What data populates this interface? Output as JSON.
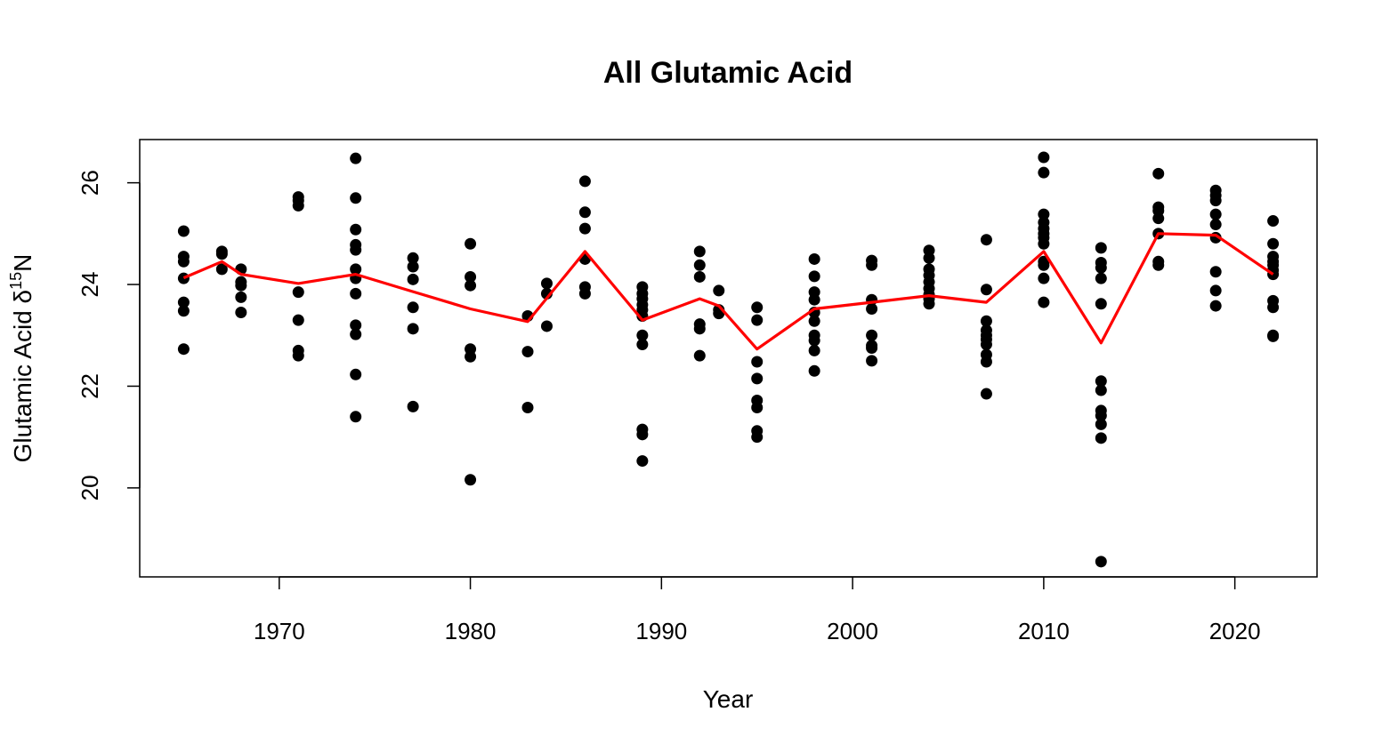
{
  "chart_data": {
    "type": "scatter",
    "title": "All Glutamic Acid",
    "xlabel": "Year",
    "ylabel_main": "Glutamic Acid δ",
    "ylabel_sup": "15",
    "ylabel_suffix": "N",
    "xlim": [
      1962.7,
      2024.3
    ],
    "ylim": [
      18.25,
      26.85
    ],
    "xticks": [
      1970,
      1980,
      1990,
      2000,
      2010,
      2020
    ],
    "yticks": [
      20,
      22,
      24,
      26
    ],
    "grid": false,
    "points": [
      {
        "year": 1965,
        "values": [
          25.05,
          24.55,
          24.45,
          24.12,
          23.65,
          23.48,
          22.73
        ]
      },
      {
        "year": 1967,
        "values": [
          24.65,
          24.6,
          24.3
        ]
      },
      {
        "year": 1968,
        "values": [
          24.3,
          24.05,
          23.98,
          23.75,
          23.45
        ]
      },
      {
        "year": 1971,
        "values": [
          25.72,
          25.65,
          25.55,
          23.85,
          23.3,
          22.7,
          22.6
        ]
      },
      {
        "year": 1974,
        "values": [
          26.48,
          25.7,
          25.08,
          24.78,
          24.68,
          24.3,
          24.12,
          23.82,
          23.2,
          23.02,
          22.23,
          21.4
        ]
      },
      {
        "year": 1977,
        "values": [
          24.52,
          24.35,
          24.1,
          23.55,
          23.13,
          21.6
        ]
      },
      {
        "year": 1980,
        "values": [
          24.8,
          24.15,
          23.98,
          22.73,
          22.58,
          20.16
        ]
      },
      {
        "year": 1983,
        "values": [
          23.38,
          22.68,
          21.58
        ]
      },
      {
        "year": 1984,
        "values": [
          24.02,
          23.82,
          23.18
        ]
      },
      {
        "year": 1986,
        "values": [
          26.03,
          25.42,
          25.1,
          24.5,
          23.95,
          23.82
        ]
      },
      {
        "year": 1989,
        "values": [
          23.95,
          23.82,
          23.72,
          23.6,
          23.5,
          23.38,
          23.0,
          22.82,
          21.15,
          21.05,
          20.53
        ]
      },
      {
        "year": 1992,
        "values": [
          24.65,
          24.38,
          24.15,
          23.22,
          23.13,
          22.6
        ]
      },
      {
        "year": 1993,
        "values": [
          23.88,
          23.5,
          23.43
        ]
      },
      {
        "year": 1995,
        "values": [
          23.55,
          23.3,
          22.48,
          22.15,
          21.72,
          21.58,
          21.12,
          21.0
        ]
      },
      {
        "year": 1998,
        "values": [
          24.5,
          24.16,
          23.85,
          23.7,
          23.45,
          23.28,
          23.0,
          22.9,
          22.7,
          22.3
        ]
      },
      {
        "year": 2001,
        "values": [
          24.47,
          24.38,
          23.7,
          23.52,
          23.0,
          22.8,
          22.75,
          22.5
        ]
      },
      {
        "year": 2004,
        "values": [
          24.67,
          24.52,
          24.3,
          24.18,
          24.05,
          23.92,
          23.8,
          23.72,
          23.62
        ]
      },
      {
        "year": 2007,
        "values": [
          24.88,
          23.9,
          23.28,
          23.1,
          23.0,
          22.92,
          22.82,
          22.62,
          22.48,
          21.85
        ]
      },
      {
        "year": 2010,
        "values": [
          26.5,
          26.2,
          25.38,
          25.22,
          25.1,
          25.0,
          24.92,
          24.8,
          24.45,
          24.38,
          24.12,
          23.65
        ]
      },
      {
        "year": 2013,
        "values": [
          24.72,
          24.43,
          24.33,
          24.12,
          23.62,
          22.1,
          21.92,
          21.52,
          21.42,
          21.25,
          20.98,
          18.55
        ]
      },
      {
        "year": 2016,
        "values": [
          26.18,
          25.52,
          25.45,
          25.3,
          25.0,
          24.45,
          24.38
        ]
      },
      {
        "year": 2019,
        "values": [
          25.85,
          25.75,
          25.65,
          25.38,
          25.18,
          24.92,
          24.25,
          23.88,
          23.58
        ]
      },
      {
        "year": 2022,
        "values": [
          25.25,
          24.8,
          24.55,
          24.45,
          24.38,
          24.28,
          24.2,
          23.68,
          23.55,
          23.0,
          22.98
        ]
      }
    ],
    "mean_line": {
      "color": "#ff0000",
      "x": [
        1965,
        1967,
        1968,
        1971,
        1974,
        1977,
        1980,
        1983,
        1986,
        1989,
        1992,
        1993,
        1995,
        1998,
        2001,
        2004,
        2007,
        2010,
        2013,
        2016,
        2019,
        2022
      ],
      "y": [
        24.13,
        24.45,
        24.2,
        24.02,
        24.2,
        23.86,
        23.52,
        23.27,
        24.65,
        23.3,
        23.72,
        23.58,
        22.73,
        23.52,
        23.65,
        23.78,
        23.65,
        24.65,
        22.85,
        25.0,
        24.97,
        24.2
      ]
    },
    "point_color": "#000000"
  }
}
